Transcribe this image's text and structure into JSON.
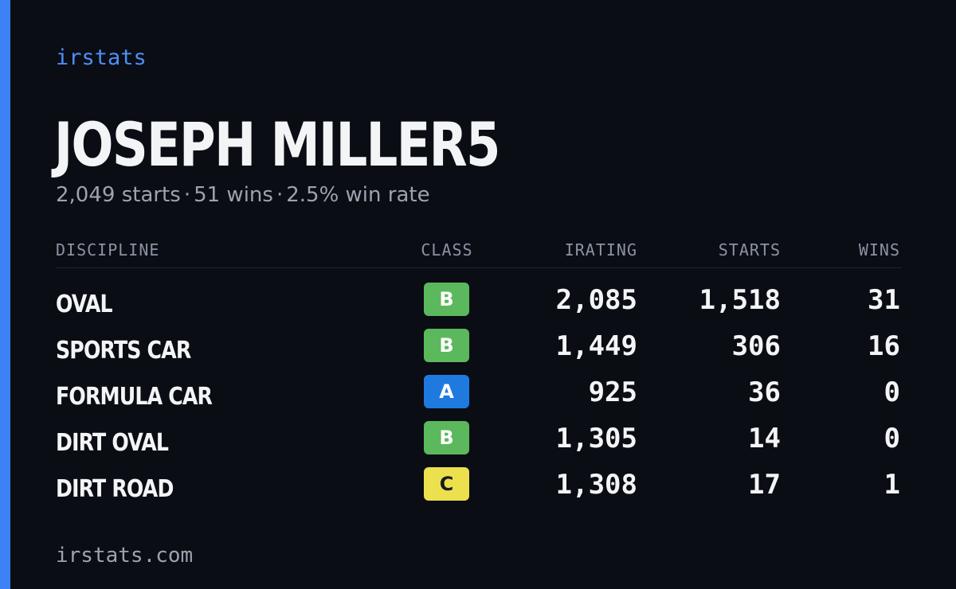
{
  "header": {
    "brand": "irstats",
    "player_name": "JOSEPH MILLER5",
    "summary": {
      "starts": "2,049 starts",
      "wins": "51 wins",
      "win_rate": "2.5% win rate",
      "separator": "·"
    }
  },
  "table": {
    "columns": {
      "discipline": "DISCIPLINE",
      "class": "CLASS",
      "irating": "IRATING",
      "starts": "STARTS",
      "wins": "WINS"
    },
    "rows": [
      {
        "discipline": "OVAL",
        "class": "B",
        "class_color": "#5cb85c",
        "irating": "2,085",
        "starts": "1,518",
        "wins": "31"
      },
      {
        "discipline": "SPORTS CAR",
        "class": "B",
        "class_color": "#5cb85c",
        "irating": "1,449",
        "starts": "306",
        "wins": "16"
      },
      {
        "discipline": "FORMULA CAR",
        "class": "A",
        "class_color": "#1f7ae0",
        "irating": "925",
        "starts": "36",
        "wins": "0"
      },
      {
        "discipline": "DIRT OVAL",
        "class": "B",
        "class_color": "#5cb85c",
        "irating": "1,305",
        "starts": "14",
        "wins": "0"
      },
      {
        "discipline": "DIRT ROAD",
        "class": "C",
        "class_color": "#ece04e",
        "irating": "1,308",
        "starts": "17",
        "wins": "1"
      }
    ]
  },
  "footer": {
    "site": "irstats.com"
  },
  "colors": {
    "background": "#0a0d14",
    "accent": "#3b82f6"
  }
}
